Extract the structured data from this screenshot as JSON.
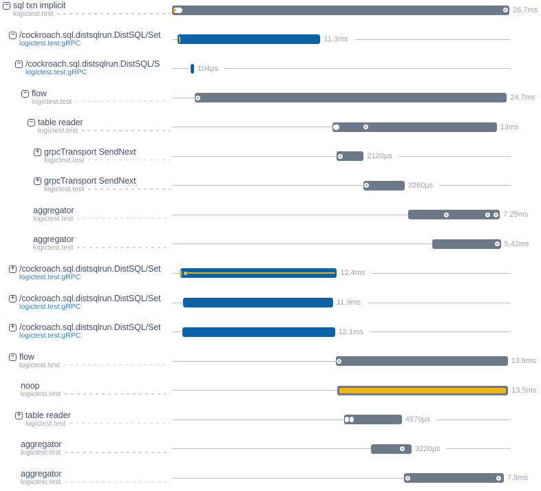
{
  "trace": {
    "total_duration_label": "26.7ms",
    "colors": {
      "bar_gray": "#6d7988",
      "bar_blue": "#0c62a6",
      "event_yellow": "#efb40e",
      "title_text": "#43506b",
      "source_gray": "#9aa3af",
      "source_blue": "#2e7dbe",
      "duration_text": "#98a2ad",
      "timeline_line": "#b8bfc7",
      "leader_dash": "#cdd3d9"
    },
    "rows": [
      {
        "name": "sql txn implicit",
        "source": "logictest.test",
        "source_style": "gray",
        "expander": "minus",
        "depth": 0,
        "dashes": true,
        "bar": {
          "color": "gray",
          "start_ms": 0,
          "duration_ms": 26.7,
          "label": "26.7ms",
          "stripe": null,
          "markers": [
            {
              "t": 0.47,
              "type": "rect",
              "w": 13
            },
            {
              "t": 0.2,
              "type": "ydot"
            },
            {
              "t": 26.4,
              "type": "dot"
            }
          ]
        }
      },
      {
        "name": "/cockroach.sql.distsqlrun.DistSQL/Set",
        "source": "logictest.test:gRPC",
        "source_style": "blue",
        "expander": "minus",
        "depth": 1,
        "dashes": false,
        "bar": {
          "color": "blue",
          "start_ms": 0.44,
          "duration_ms": 11.3,
          "label": "11.3ms",
          "stripe": null,
          "markers": [
            {
              "t": 0.6,
              "type": "ydash"
            }
          ]
        }
      },
      {
        "name": "/cockroach.sql.distsqlrun.DistSQL/S",
        "source": "logictest.test:gRPC",
        "source_style": "blue",
        "expander": "minus",
        "depth": 2,
        "dashes": false,
        "bar": {
          "color": "blue",
          "start_ms": 1.47,
          "duration_ms": 0.104,
          "label": "104µs",
          "stripe": null,
          "markers": []
        }
      },
      {
        "name": "flow",
        "source": "logictest.test",
        "source_style": "gray",
        "expander": "minus",
        "depth": 3,
        "dashes": true,
        "bar": {
          "color": "gray",
          "start_ms": 1.8,
          "duration_ms": 24.7,
          "label": "24.7ms",
          "stripe": null,
          "markers": [
            {
              "t": 2.05,
              "type": "dot"
            }
          ]
        }
      },
      {
        "name": "table reader",
        "source": "logictest.test",
        "source_style": "gray",
        "expander": "minus",
        "depth": 4,
        "dashes": true,
        "bar": {
          "color": "gray",
          "start_ms": 12.7,
          "duration_ms": 13,
          "label": "13ms",
          "stripe": null,
          "markers": [
            {
              "t": 13.0,
              "type": "rect",
              "w": 9
            },
            {
              "t": 15.35,
              "type": "dot"
            }
          ]
        }
      },
      {
        "name": "grpcTransport SendNext",
        "source": "logictest.test",
        "source_style": "gray",
        "expander": "plus",
        "depth": 5,
        "dashes": true,
        "bar": {
          "color": "gray",
          "start_ms": 13.05,
          "duration_ms": 2.12,
          "label": "2120µs",
          "stripe": null,
          "markers": [
            {
              "t": 13.3,
              "type": "dot"
            }
          ]
        }
      },
      {
        "name": "grpcTransport SendNext",
        "source": "logictest.test",
        "source_style": "gray",
        "expander": "plus",
        "depth": 5,
        "dashes": true,
        "bar": {
          "color": "gray",
          "start_ms": 15.15,
          "duration_ms": 3.26,
          "label": "3260µs",
          "stripe": null,
          "markers": [
            {
              "t": 15.42,
              "type": "dot"
            }
          ]
        }
      },
      {
        "name": "aggregator",
        "source": "logictest.test",
        "source_style": "gray",
        "expander": null,
        "depth": 4,
        "dashes": true,
        "bar": {
          "color": "gray",
          "start_ms": 18.7,
          "duration_ms": 7.25,
          "label": "7.25ms",
          "stripe": null,
          "markers": [
            {
              "t": 21.7,
              "type": "dot"
            },
            {
              "t": 24.97,
              "type": "dot"
            },
            {
              "t": 25.62,
              "type": "dot"
            }
          ]
        }
      },
      {
        "name": "aggregator",
        "source": "logictest.test",
        "source_style": "gray",
        "expander": null,
        "depth": 4,
        "dashes": true,
        "bar": {
          "color": "gray",
          "start_ms": 20.6,
          "duration_ms": 5.42,
          "label": "5.42ms",
          "stripe": null,
          "markers": [
            {
              "t": 25.72,
              "type": "dot"
            }
          ]
        }
      },
      {
        "name": "/cockroach.sql.distsqlrun.DistSQL/Set",
        "source": "logictest.test:gRPC",
        "source_style": "blue",
        "expander": "plus",
        "depth": 1,
        "dashes": false,
        "bar": {
          "color": "blue",
          "start_ms": 0.65,
          "duration_ms": 12.4,
          "label": "12.4ms",
          "stripe": "line",
          "markers": [
            {
              "t": 0.68,
              "type": "ydash"
            },
            {
              "t": 1.05,
              "type": "ysquare"
            }
          ]
        }
      },
      {
        "name": "/cockroach.sql.distsqlrun.DistSQL/Set",
        "source": "logictest.test:gRPC",
        "source_style": "blue",
        "expander": "plus",
        "depth": 1,
        "dashes": false,
        "bar": {
          "color": "blue",
          "start_ms": 0.85,
          "duration_ms": 11.9,
          "label": "11.9ms",
          "stripe": null,
          "markers": []
        }
      },
      {
        "name": "/cockroach.sql.distsqlrun.DistSQL/Set",
        "source": "logictest.test:gRPC",
        "source_style": "blue",
        "expander": "plus",
        "depth": 1,
        "dashes": false,
        "bar": {
          "color": "blue",
          "start_ms": 0.8,
          "duration_ms": 12.1,
          "label": "12.1ms",
          "stripe": null,
          "markers": []
        }
      },
      {
        "name": "flow",
        "source": "logictest.test",
        "source_style": "gray",
        "expander": "minus",
        "depth": 1,
        "dashes": true,
        "bar": {
          "color": "gray",
          "start_ms": 12.97,
          "duration_ms": 13.6,
          "label": "13.6ms",
          "stripe": null,
          "markers": [
            {
              "t": 13.2,
              "type": "dot"
            }
          ]
        }
      },
      {
        "name": "noop",
        "source": "logictest.test",
        "source_style": "gray",
        "expander": null,
        "depth": 2,
        "dashes": true,
        "bar": {
          "color": "gray",
          "start_ms": 13.1,
          "duration_ms": 13.5,
          "label": "13.5ms",
          "stripe": "full",
          "markers": []
        }
      },
      {
        "name": "table reader",
        "source": "logictest.test",
        "source_style": "gray",
        "expander": "plus",
        "depth": 2,
        "dashes": true,
        "bar": {
          "color": "gray",
          "start_ms": 13.62,
          "duration_ms": 4.57,
          "label": "4570µs",
          "stripe": null,
          "markers": [
            {
              "t": 13.85,
              "type": "rect",
              "w": 6
            },
            {
              "t": 14.22,
              "type": "rect",
              "w": 6
            }
          ]
        }
      },
      {
        "name": "aggregator",
        "source": "logictest.test",
        "source_style": "gray",
        "expander": null,
        "depth": 2,
        "dashes": true,
        "bar": {
          "color": "gray",
          "start_ms": 15.75,
          "duration_ms": 3.22,
          "label": "3220µs",
          "stripe": null,
          "markers": [
            {
              "t": 18.25,
              "type": "dot"
            }
          ]
        }
      },
      {
        "name": "aggregator",
        "source": "logictest.test",
        "source_style": "gray",
        "expander": null,
        "depth": 2,
        "dashes": true,
        "bar": {
          "color": "gray",
          "start_ms": 18.37,
          "duration_ms": 7.9,
          "label": "7.9ms",
          "stripe": null,
          "markers": [
            {
              "t": 18.65,
              "type": "dot"
            },
            {
              "t": 25.85,
              "type": "dot"
            }
          ]
        }
      }
    ]
  }
}
